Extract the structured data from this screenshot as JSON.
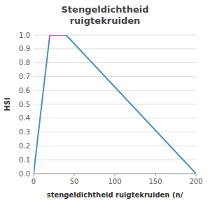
{
  "chart_data": {
    "type": "line",
    "title": "Stengeldichtheid\nruigtekruiden",
    "x_label": "stengeldichtheid ruigtekruiden (n/",
    "y_label": "HSI",
    "x": [
      0,
      20,
      40,
      200
    ],
    "values": [
      0,
      1.0,
      1.0,
      0.0
    ],
    "color": "#4a90c4",
    "xlim": [
      0,
      200
    ],
    "ylim": [
      0.0,
      1.0
    ],
    "xticks": [
      0,
      50,
      100,
      150,
      200
    ],
    "yticks": [
      {
        "value": 0.0,
        "label": "0.0"
      },
      0.1,
      0.2,
      0.3,
      0.4,
      0.5,
      0.6,
      0.7,
      0.8,
      0.9,
      {
        "value": 1.0,
        "label": "1.0"
      }
    ],
    "grid": true
  }
}
